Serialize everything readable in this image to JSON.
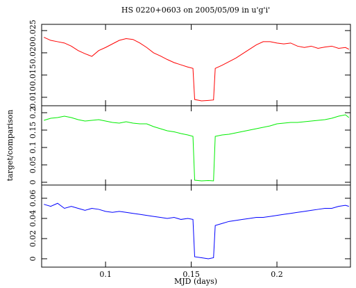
{
  "chart_data": [
    {
      "type": "line",
      "title": "HS 0220+0603 on 2005/05/09 in u'g'i'",
      "xlim": [
        0.0627,
        0.2429
      ],
      "ylim": [
        0.0081,
        0.0264
      ],
      "yticks": [
        {
          "value": 0.01,
          "label": "0.010"
        },
        0.015,
        {
          "value": 0.02,
          "label": "0.020"
        },
        0.025
      ],
      "x": [
        0.064,
        0.068,
        0.072,
        0.076,
        0.08,
        0.084,
        0.088,
        0.092,
        0.096,
        0.1,
        0.104,
        0.108,
        0.112,
        0.116,
        0.12,
        0.124,
        0.128,
        0.132,
        0.136,
        0.14,
        0.144,
        0.148,
        0.151,
        0.152,
        0.156,
        0.16,
        0.163,
        0.164,
        0.168,
        0.172,
        0.176,
        0.18,
        0.184,
        0.188,
        0.192,
        0.196,
        0.2,
        0.204,
        0.208,
        0.212,
        0.216,
        0.22,
        0.224,
        0.228,
        0.232,
        0.236,
        0.24,
        0.242
      ],
      "series": [
        {
          "color": "#ff0000",
          "values": [
            0.0235,
            0.0228,
            0.0225,
            0.0222,
            0.0215,
            0.0205,
            0.0198,
            0.0192,
            0.0205,
            0.0212,
            0.022,
            0.0228,
            0.0232,
            0.023,
            0.0222,
            0.0212,
            0.02,
            0.0193,
            0.0185,
            0.0178,
            0.0173,
            0.0168,
            0.0165,
            0.0095,
            0.0092,
            0.0093,
            0.0094,
            0.0165,
            0.0172,
            0.018,
            0.0188,
            0.0198,
            0.0208,
            0.0218,
            0.0225,
            0.0225,
            0.0222,
            0.022,
            0.0222,
            0.0215,
            0.0212,
            0.0215,
            0.021,
            0.0213,
            0.0215,
            0.021,
            0.0212,
            0.0208
          ]
        }
      ]
    },
    {
      "type": "line",
      "ylabel": "target/comparison",
      "xlim": [
        0.0627,
        0.2429
      ],
      "ylim": [
        -0.008,
        0.22
      ],
      "yticks": [
        0,
        0.05,
        0.1,
        0.15,
        0.2
      ],
      "x": [
        0.064,
        0.068,
        0.072,
        0.076,
        0.08,
        0.084,
        0.088,
        0.092,
        0.096,
        0.1,
        0.104,
        0.108,
        0.112,
        0.116,
        0.12,
        0.124,
        0.128,
        0.132,
        0.136,
        0.14,
        0.144,
        0.148,
        0.151,
        0.152,
        0.156,
        0.16,
        0.163,
        0.164,
        0.168,
        0.172,
        0.176,
        0.18,
        0.184,
        0.188,
        0.192,
        0.196,
        0.2,
        0.204,
        0.208,
        0.212,
        0.216,
        0.22,
        0.224,
        0.228,
        0.232,
        0.236,
        0.24,
        0.242
      ],
      "series": [
        {
          "color": "#00ee00",
          "values": [
            0.178,
            0.184,
            0.186,
            0.19,
            0.186,
            0.18,
            0.176,
            0.178,
            0.18,
            0.176,
            0.172,
            0.17,
            0.174,
            0.17,
            0.168,
            0.168,
            0.16,
            0.154,
            0.148,
            0.145,
            0.14,
            0.136,
            0.132,
            0.006,
            0.004,
            0.005,
            0.004,
            0.132,
            0.136,
            0.138,
            0.142,
            0.146,
            0.15,
            0.154,
            0.158,
            0.162,
            0.168,
            0.17,
            0.172,
            0.172,
            0.174,
            0.176,
            0.178,
            0.18,
            0.184,
            0.19,
            0.194,
            0.186
          ]
        }
      ]
    },
    {
      "type": "line",
      "xlabel": "MJD (days)",
      "xlim": [
        0.0627,
        0.2429
      ],
      "ylim": [
        -0.0083,
        0.0731
      ],
      "xticks": [
        0.1,
        0.15,
        0.2
      ],
      "yticks": [
        0,
        0.02,
        0.04,
        0.06
      ],
      "x": [
        0.064,
        0.068,
        0.072,
        0.076,
        0.08,
        0.084,
        0.088,
        0.092,
        0.096,
        0.1,
        0.104,
        0.108,
        0.112,
        0.116,
        0.12,
        0.124,
        0.128,
        0.132,
        0.136,
        0.14,
        0.144,
        0.148,
        0.151,
        0.152,
        0.156,
        0.16,
        0.163,
        0.164,
        0.168,
        0.172,
        0.176,
        0.18,
        0.184,
        0.188,
        0.192,
        0.196,
        0.2,
        0.204,
        0.208,
        0.212,
        0.216,
        0.22,
        0.224,
        0.228,
        0.232,
        0.236,
        0.24,
        0.242
      ],
      "series": [
        {
          "color": "#0000ff",
          "values": [
            0.054,
            0.052,
            0.055,
            0.05,
            0.052,
            0.05,
            0.048,
            0.05,
            0.049,
            0.047,
            0.046,
            0.047,
            0.046,
            0.045,
            0.044,
            0.043,
            0.042,
            0.041,
            0.04,
            0.041,
            0.039,
            0.04,
            0.039,
            0.002,
            0.001,
            0.0,
            0.001,
            0.033,
            0.035,
            0.037,
            0.038,
            0.039,
            0.04,
            0.041,
            0.041,
            0.042,
            0.043,
            0.044,
            0.045,
            0.046,
            0.047,
            0.048,
            0.049,
            0.05,
            0.05,
            0.052,
            0.053,
            0.052
          ]
        }
      ]
    }
  ]
}
